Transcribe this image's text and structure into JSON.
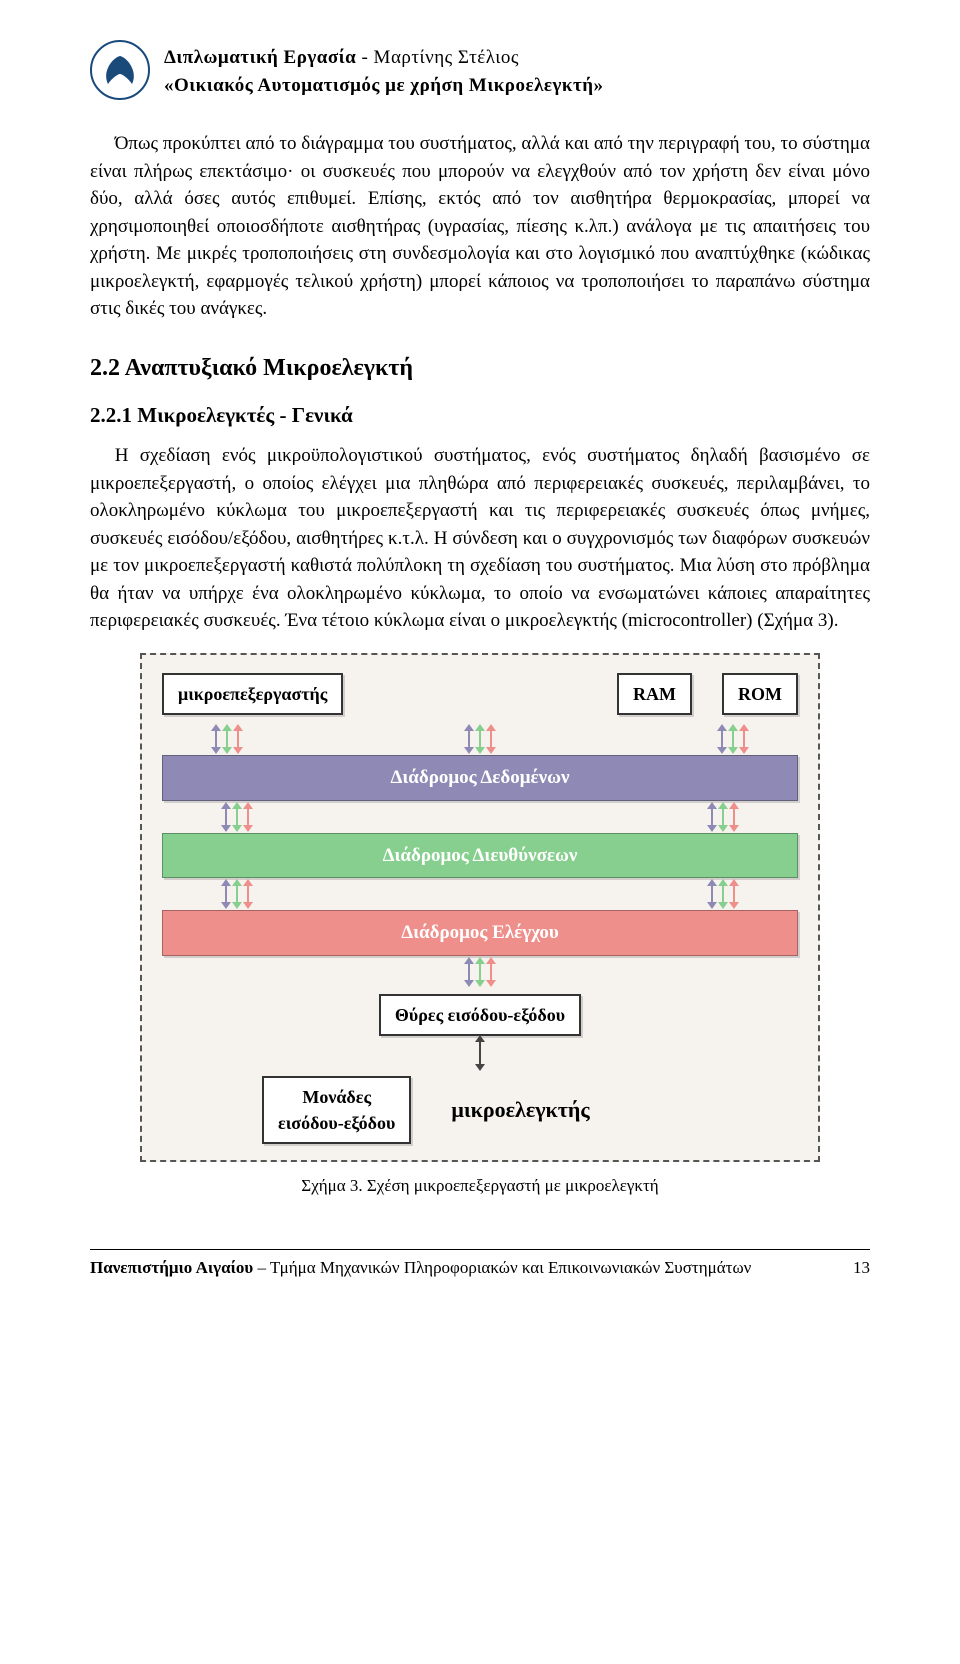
{
  "header": {
    "title_bold": "Διπλωματική Εργασία",
    "title_sep": " - ",
    "author": "Μαρτίνης Στέλιος",
    "subtitle": "«Οικιακός Αυτοματισμός με χρήση Μικροελεγκτή»"
  },
  "paragraphs": {
    "p1": "Όπως προκύπτει από το διάγραμμα του συστήματος, αλλά και από την περιγραφή του, το σύστημα είναι πλήρως επεκτάσιμο· οι συσκευές που μπορούν να ελεγχθούν από τον χρήστη δεν είναι μόνο δύο, αλλά όσες αυτός επιθυμεί. Επίσης, εκτός από τον αισθητήρα θερμοκρασίας, μπορεί να χρησιμοποιηθεί οποιοσδήποτε αισθητήρας (υγρασίας, πίεσης κ.λπ.) ανάλογα με τις απαιτήσεις του χρήστη. Με μικρές τροποποιήσεις στη συνδεσμολογία και στο λογισμικό που αναπτύχθηκε (κώδικας μικροελεγκτή, εφαρμογές τελικού χρήστη) μπορεί κάποιος να τροποποιήσει το παραπάνω σύστημα στις δικές του ανάγκες.",
    "p2": "Η σχεδίαση ενός μικροϋπολογιστικού συστήματος, ενός συστήματος δηλαδή βασισμένο σε μικροεπεξεργαστή, ο οποίος ελέγχει μια πληθώρα από περιφερειακές συσκευές, περιλαμβάνει, το ολοκληρωμένο κύκλωμα του μικροεπεξεργαστή και τις περιφερειακές συσκευές όπως μνήμες, συσκευές εισόδου/εξόδου, αισθητήρες κ.τ.λ. Η σύνδεση και ο συγχρονισμός των διαφόρων συσκευών με τον μικροεπεξεργαστή καθιστά πολύπλοκη τη σχεδίαση του συστήματος. Μια λύση στο πρόβλημα θα ήταν να υπήρχε ένα ολοκληρωμένο κύκλωμα, το οποίο να ενσωματώνει κάποιες απαραίτητες περιφερειακές συσκευές. Ένα τέτοιο κύκλωμα είναι ο μικροελεγκτής (microcontroller) (Σχήμα 3)."
  },
  "sections": {
    "sec22": "2.2 Αναπτυξιακό Μικροελεγκτή",
    "sec221": "2.2.1 Μικροελεγκτές - Γενικά"
  },
  "diagram": {
    "type": "block-diagram",
    "background": "#f6f3ef",
    "border_color": "#555555",
    "nodes": {
      "cpu": "μικροεπεξεργαστής",
      "ram": "RAM",
      "rom": "ROM",
      "io_ports": "Θύρες εισόδου-εξόδου",
      "io_units": "Μονάδες\nεισόδου-εξόδου",
      "mcu_label": "μικροελεγκτής"
    },
    "buses": [
      {
        "label": "Διάδρομος Δεδομένων",
        "color": "#8e8ab5"
      },
      {
        "label": "Διάδρομος Διευθύνσεων",
        "color": "#86cf8e"
      },
      {
        "label": "Διάδρομος Ελέγχου",
        "color": "#ef8f8c"
      }
    ],
    "arrow_colors": {
      "data": "#8e8ab5",
      "addr": "#86cf8e",
      "ctrl": "#ef8f8c",
      "io": "#444444"
    },
    "box_bg": "#ffffff",
    "box_border": "#333333",
    "font_family": "Palatino/serif",
    "node_fontsize": 18,
    "bus_fontsize": 19
  },
  "caption": "Σχήμα 3. Σχέση μικροεπεξεργαστή με μικροελεγκτή",
  "footer": {
    "uni": "Πανεπιστήμιο Αιγαίου",
    "dept": " – Τμήμα Μηχανικών Πληροφοριακών και Επικοινωνιακών Συστημάτων",
    "page": "13"
  },
  "colors": {
    "text": "#000000",
    "logo": "#1a4a7a",
    "page_bg": "#ffffff"
  }
}
